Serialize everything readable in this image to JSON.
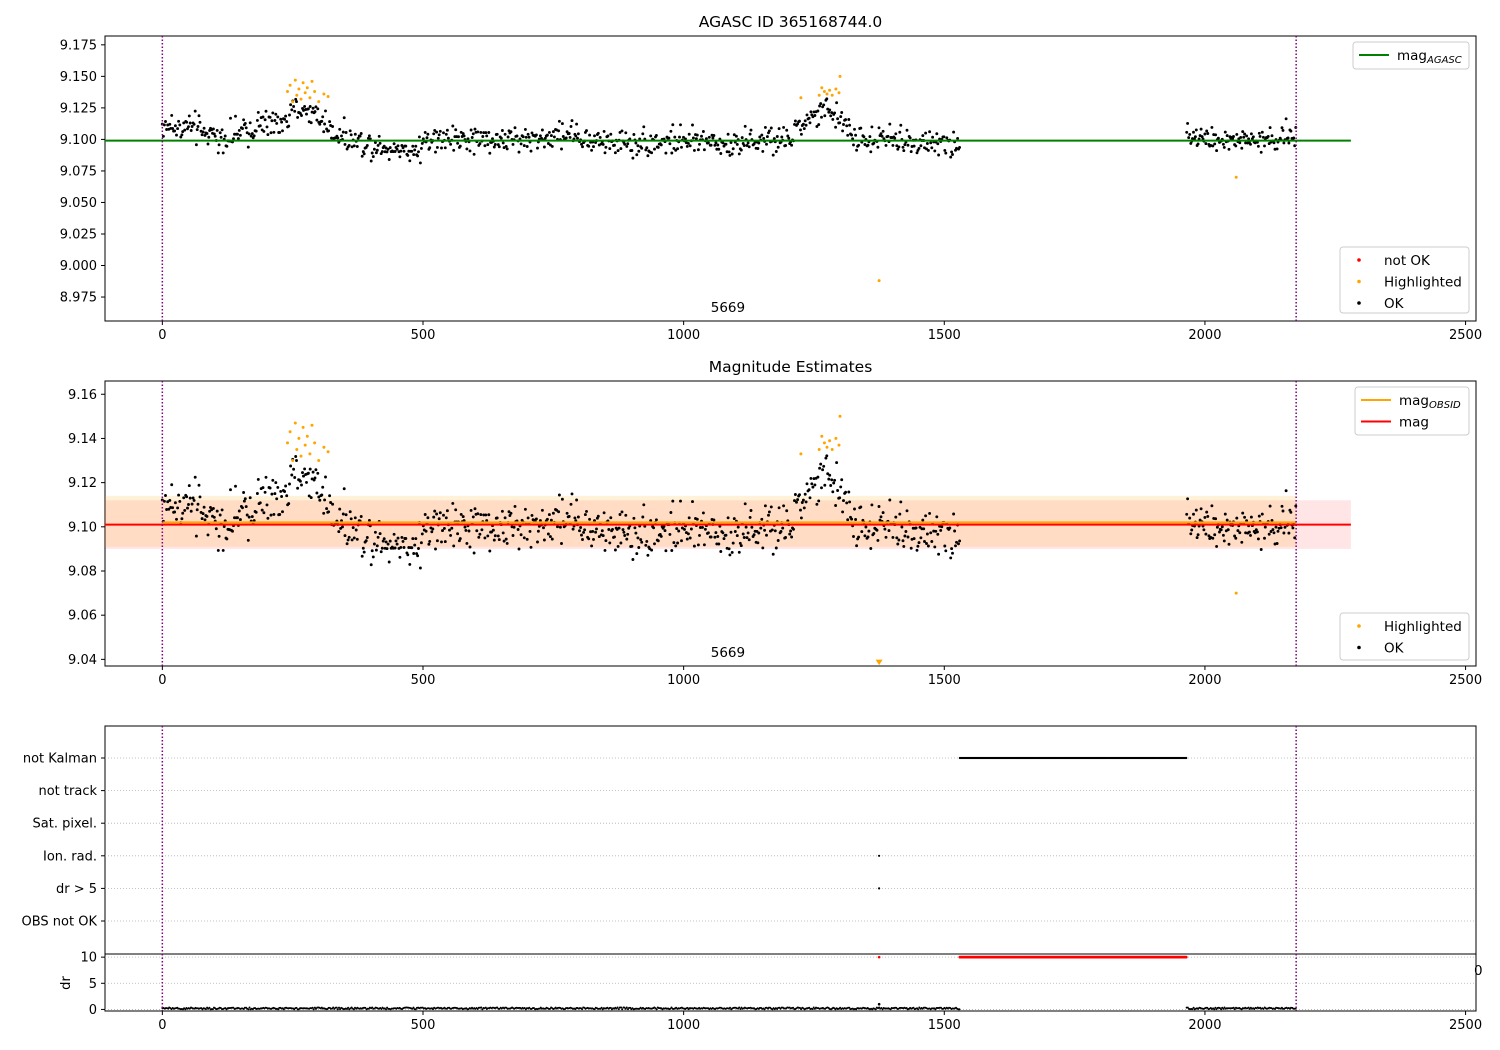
{
  "chart_data": [
    {
      "type": "scatter",
      "title": "AGASC ID 365168744.0",
      "xlim": [
        -110,
        2520
      ],
      "ylim": [
        8.956,
        9.182
      ],
      "xticks": [
        0,
        500,
        1000,
        1500,
        2000,
        2500
      ],
      "yticks": [
        8.975,
        9.0,
        9.025,
        9.05,
        9.075,
        9.1,
        9.125,
        9.15,
        9.175
      ],
      "ytick_labels": [
        "8.975",
        "9.000",
        "9.025",
        "9.050",
        "9.075",
        "9.100",
        "9.125",
        "9.150",
        "9.175"
      ],
      "obsid_label": "5669",
      "obsid_label_x": 1085,
      "vlines": [
        0,
        2175
      ],
      "mag_agasc": 9.099,
      "mag_line_x": [
        -110,
        2280
      ],
      "legend_upper": [
        {
          "label": "mag",
          "subscript": "AGASC",
          "color": "#008000",
          "kind": "line"
        }
      ],
      "legend_lower": [
        {
          "label": "not OK",
          "color": "#ff0000",
          "kind": "dot"
        },
        {
          "label": "Highlighted",
          "color": "#ffa500",
          "kind": "dot"
        },
        {
          "label": "OK",
          "color": "#000000",
          "kind": "dot"
        }
      ],
      "series": [
        {
          "name": "OK",
          "color": "#000000",
          "segments": [
            {
              "x": [
                0,
                1530
              ],
              "anchors": [
                [
                  0,
                  9.112
                ],
                [
                  60,
                  9.108
                ],
                [
                  120,
                  9.1
                ],
                [
                  180,
                  9.11
                ],
                [
                  230,
                  9.113
                ],
                [
                  260,
                  9.125
                ],
                [
                  300,
                  9.118
                ],
                [
                  330,
                  9.105
                ],
                [
                  380,
                  9.098
                ],
                [
                  450,
                  9.093
                ],
                [
                  470,
                  9.09
                ],
                [
                  520,
                  9.1
                ],
                [
                  700,
                  9.1
                ],
                [
                  780,
                  9.105
                ],
                [
                  830,
                  9.097
                ],
                [
                  1000,
                  9.098
                ],
                [
                  1200,
                  9.098
                ],
                [
                  1230,
                  9.113
                ],
                [
                  1270,
                  9.122
                ],
                [
                  1300,
                  9.118
                ],
                [
                  1330,
                  9.1
                ],
                [
                  1400,
                  9.1
                ],
                [
                  1530,
                  9.095
                ]
              ]
            },
            {
              "x": [
                1965,
                2175
              ],
              "anchors": [
                [
                  1965,
                  9.108
                ],
                [
                  2000,
                  9.1
                ],
                [
                  2100,
                  9.098
                ],
                [
                  2175,
                  9.102
                ]
              ]
            }
          ]
        },
        {
          "name": "Highlighted",
          "color": "#ffa500",
          "points": [
            [
              240,
              9.138
            ],
            [
              245,
              9.143
            ],
            [
              250,
              9.13
            ],
            [
              255,
              9.147
            ],
            [
              258,
              9.135
            ],
            [
              262,
              9.14
            ],
            [
              266,
              9.132
            ],
            [
              270,
              9.145
            ],
            [
              274,
              9.137
            ],
            [
              278,
              9.141
            ],
            [
              283,
              9.133
            ],
            [
              287,
              9.146
            ],
            [
              292,
              9.138
            ],
            [
              300,
              9.13
            ],
            [
              310,
              9.136
            ],
            [
              318,
              9.134
            ],
            [
              1225,
              9.133
            ],
            [
              1260,
              9.135
            ],
            [
              1265,
              9.141
            ],
            [
              1270,
              9.138
            ],
            [
              1275,
              9.136
            ],
            [
              1280,
              9.139
            ],
            [
              1285,
              9.135
            ],
            [
              1292,
              9.14
            ],
            [
              1298,
              9.137
            ],
            [
              1300,
              9.15
            ],
            [
              1375,
              8.988
            ],
            [
              2060,
              9.07
            ]
          ]
        }
      ]
    },
    {
      "type": "scatter",
      "title": "Magnitude Estimates",
      "xlim": [
        -110,
        2520
      ],
      "ylim": [
        9.037,
        9.166
      ],
      "xticks": [
        0,
        500,
        1000,
        1500,
        2000,
        2500
      ],
      "yticks": [
        9.04,
        9.06,
        9.08,
        9.1,
        9.12,
        9.14,
        9.16
      ],
      "ytick_labels": [
        "9.04",
        "9.06",
        "9.08",
        "9.10",
        "9.12",
        "9.14",
        "9.16"
      ],
      "obsid_label": "5669",
      "obsid_label_x": 1085,
      "vlines": [
        0,
        2175
      ],
      "mag_obsid": 9.102,
      "mag": 9.101,
      "band_obsid": [
        9.091,
        9.114
      ],
      "band_mag": [
        9.09,
        9.112
      ],
      "band_obsid_x": [
        -110,
        2175
      ],
      "band_mag_x": [
        -110,
        2280
      ],
      "legend_upper": [
        {
          "label": "mag",
          "subscript": "OBSID",
          "color": "#ffa500",
          "kind": "line"
        },
        {
          "label": "mag",
          "subscript": "",
          "color": "#ff0000",
          "kind": "line"
        }
      ],
      "legend_lower": [
        {
          "label": "Highlighted",
          "color": "#ffa500",
          "kind": "dot"
        },
        {
          "label": "OK",
          "color": "#000000",
          "kind": "dot"
        }
      ],
      "marker_below": {
        "x": 1375,
        "y": 9.0385,
        "color": "#ffa500"
      }
    },
    {
      "type": "scatter",
      "title": "",
      "xlim": [
        -110,
        2520
      ],
      "categories": [
        "not Kalman",
        "not track",
        "Sat. pixel.",
        "Ion. rad.",
        "dr > 5",
        "OBS not OK"
      ],
      "flag_points": [
        {
          "category": "not Kalman",
          "x": [
            1530,
            1965
          ]
        },
        {
          "category": "Ion. rad.",
          "x": [
            1375,
            1375
          ]
        },
        {
          "category": "dr > 5",
          "x": [
            1375,
            1375
          ]
        }
      ],
      "corner_label": "0"
    },
    {
      "type": "scatter",
      "title": "",
      "xlim": [
        -110,
        2520
      ],
      "ylim": [
        -0.3,
        10.6
      ],
      "ylabel": "dr",
      "xticks": [
        0,
        500,
        1000,
        1500,
        2000,
        2500
      ],
      "yticks": [
        0,
        5,
        10
      ],
      "ytick_labels": [
        "0",
        "5",
        "10"
      ],
      "dr_capped": {
        "x": [
          1530,
          1965
        ],
        "value": 10,
        "color": "#ff0000"
      },
      "dr_extra": [
        {
          "x": 1375,
          "value": 10,
          "color": "#ff0000"
        },
        {
          "x": 1375,
          "value": 1,
          "color": "#000000"
        }
      ],
      "dr_ok": {
        "segments": [
          [
            0,
            1530
          ],
          [
            1965,
            2175
          ]
        ],
        "value": 0.2
      }
    }
  ]
}
